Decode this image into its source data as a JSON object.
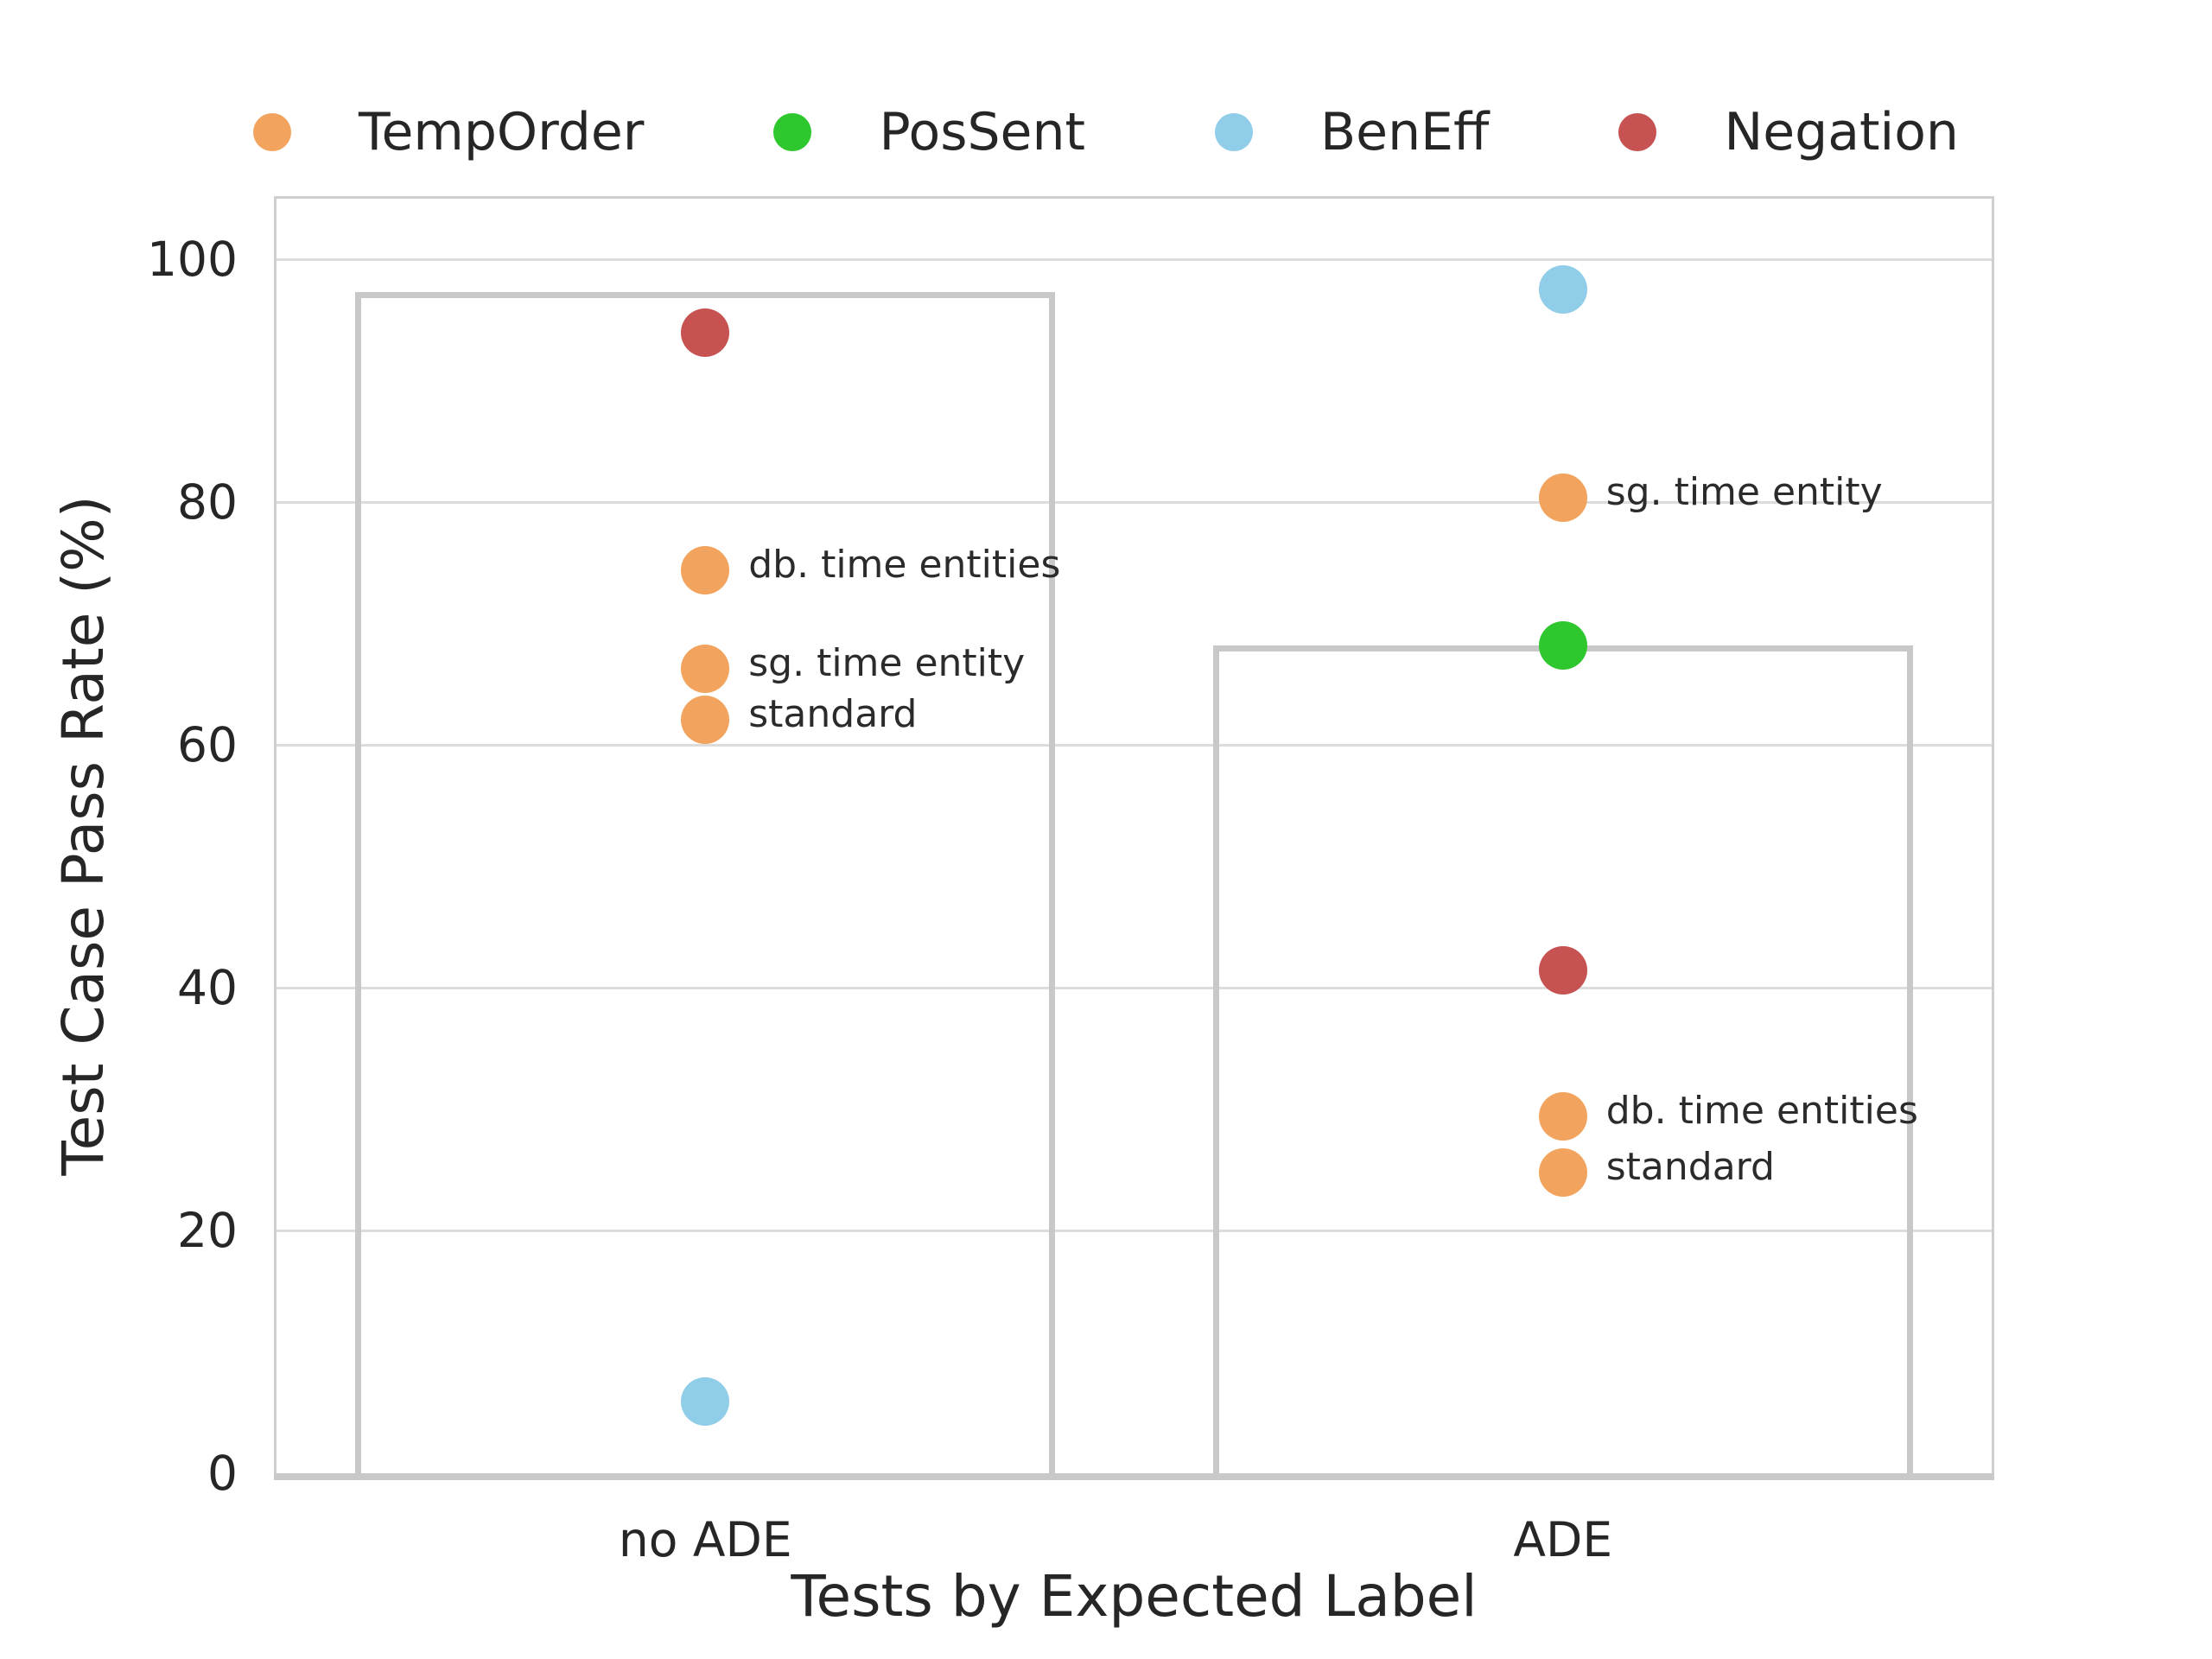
{
  "figure": {
    "background": "#ffffff",
    "text_color": "#262626",
    "grid_color": "#dcdcdc",
    "spine_color": "#cfcfcf",
    "bar_edge_color": "#c8c8c8"
  },
  "legend": {
    "items": [
      {
        "label": "TempOrder",
        "color": "#f2a45e"
      },
      {
        "label": "PosSent",
        "color": "#2ec72e"
      },
      {
        "label": "BenEff",
        "color": "#8fcde8"
      },
      {
        "label": "Negation",
        "color": "#c65251"
      }
    ]
  },
  "chart_data": {
    "type": "scatter",
    "title": "",
    "xlabel": "Tests by Expected Label",
    "ylabel": "Test Case Pass Rate (%)",
    "ylim": [
      0,
      105
    ],
    "yticks": [
      0,
      20,
      40,
      60,
      80,
      100
    ],
    "grid": "horizontal",
    "legend_position": "top",
    "categories": [
      "no ADE",
      "ADE"
    ],
    "bars": [
      {
        "category": "no ADE",
        "top": 97.3
      },
      {
        "category": "ADE",
        "top": 68.2
      }
    ],
    "points": [
      {
        "category": "no ADE",
        "series": "Negation",
        "value": 94.0,
        "annotation": ""
      },
      {
        "category": "no ADE",
        "series": "TempOrder",
        "value": 74.4,
        "annotation": "db. time entities"
      },
      {
        "category": "no ADE",
        "series": "TempOrder",
        "value": 66.3,
        "annotation": "sg. time entity"
      },
      {
        "category": "no ADE",
        "series": "TempOrder",
        "value": 62.1,
        "annotation": "standard"
      },
      {
        "category": "no ADE",
        "series": "BenEff",
        "value": 5.9,
        "annotation": ""
      },
      {
        "category": "ADE",
        "series": "BenEff",
        "value": 97.5,
        "annotation": ""
      },
      {
        "category": "ADE",
        "series": "TempOrder",
        "value": 80.4,
        "annotation": "sg. time entity"
      },
      {
        "category": "ADE",
        "series": "PosSent",
        "value": 68.2,
        "annotation": ""
      },
      {
        "category": "ADE",
        "series": "Negation",
        "value": 41.4,
        "annotation": ""
      },
      {
        "category": "ADE",
        "series": "TempOrder",
        "value": 29.4,
        "annotation": "db. time entities"
      },
      {
        "category": "ADE",
        "series": "TempOrder",
        "value": 24.8,
        "annotation": "standard"
      }
    ]
  }
}
